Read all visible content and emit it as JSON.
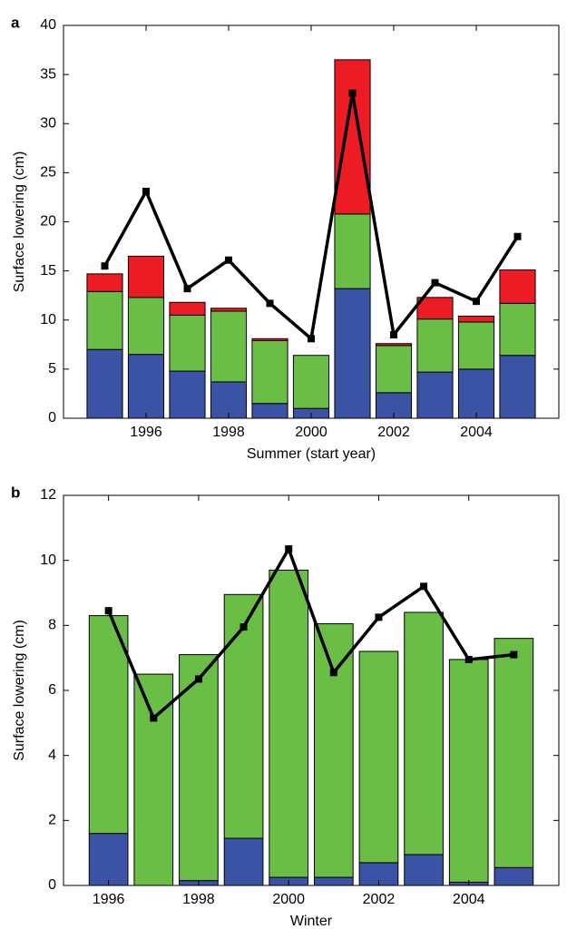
{
  "chart_data": [
    {
      "type": "bar",
      "stacked": true,
      "panel_label": "a",
      "x_label": "Summer (start year)",
      "y_label": "Surface lowering (cm)",
      "x": [
        1995,
        1996,
        1997,
        1998,
        1999,
        2000,
        2001,
        2002,
        2003,
        2004,
        2005
      ],
      "series": [
        {
          "color": "#3a53a4",
          "values": [
            7.0,
            6.5,
            4.8,
            3.7,
            1.5,
            1.0,
            13.2,
            2.6,
            4.7,
            5.0,
            6.4
          ]
        },
        {
          "color": "#6abd45",
          "values": [
            5.9,
            5.8,
            5.7,
            7.2,
            6.4,
            5.4,
            7.6,
            4.8,
            5.4,
            4.8,
            5.3
          ]
        },
        {
          "color": "#ed1c24",
          "values": [
            1.8,
            4.2,
            1.3,
            0.3,
            0.2,
            0,
            15.7,
            0.2,
            2.2,
            0.6,
            3.4
          ]
        }
      ],
      "line": {
        "color": "#000000",
        "values": [
          15.5,
          23.1,
          13.2,
          16.1,
          11.7,
          8.1,
          33.1,
          8.5,
          13.8,
          11.9,
          18.5
        ]
      },
      "xlim": [
        1994,
        2006
      ],
      "xticks": [
        1996,
        1998,
        2000,
        2002,
        2004
      ],
      "ylim": [
        0,
        40
      ],
      "yticks": [
        0,
        5,
        10,
        15,
        20,
        25,
        30,
        35,
        40
      ]
    },
    {
      "type": "bar",
      "stacked": true,
      "panel_label": "b",
      "x_label": "Winter",
      "y_label": "Surface lowering (cm)",
      "x": [
        1996,
        1997,
        1998,
        1999,
        2000,
        2001,
        2002,
        2003,
        2004,
        2005
      ],
      "series": [
        {
          "color": "#3a53a4",
          "values": [
            1.6,
            0,
            0.15,
            1.45,
            0.25,
            0.25,
            0.7,
            0.95,
            0.1,
            0.55
          ]
        },
        {
          "color": "#6abd45",
          "values": [
            6.7,
            6.5,
            6.95,
            7.5,
            9.45,
            7.8,
            6.5,
            7.45,
            6.85,
            7.05
          ]
        }
      ],
      "line": {
        "color": "#000000",
        "values": [
          8.45,
          5.15,
          6.35,
          7.95,
          10.35,
          6.55,
          8.25,
          9.2,
          6.95,
          7.1
        ]
      },
      "xlim": [
        1995,
        2006
      ],
      "xticks": [
        1996,
        1998,
        2000,
        2002,
        2004
      ],
      "ylim": [
        0,
        12
      ],
      "yticks": [
        0,
        2,
        4,
        6,
        8,
        10,
        12
      ]
    }
  ]
}
